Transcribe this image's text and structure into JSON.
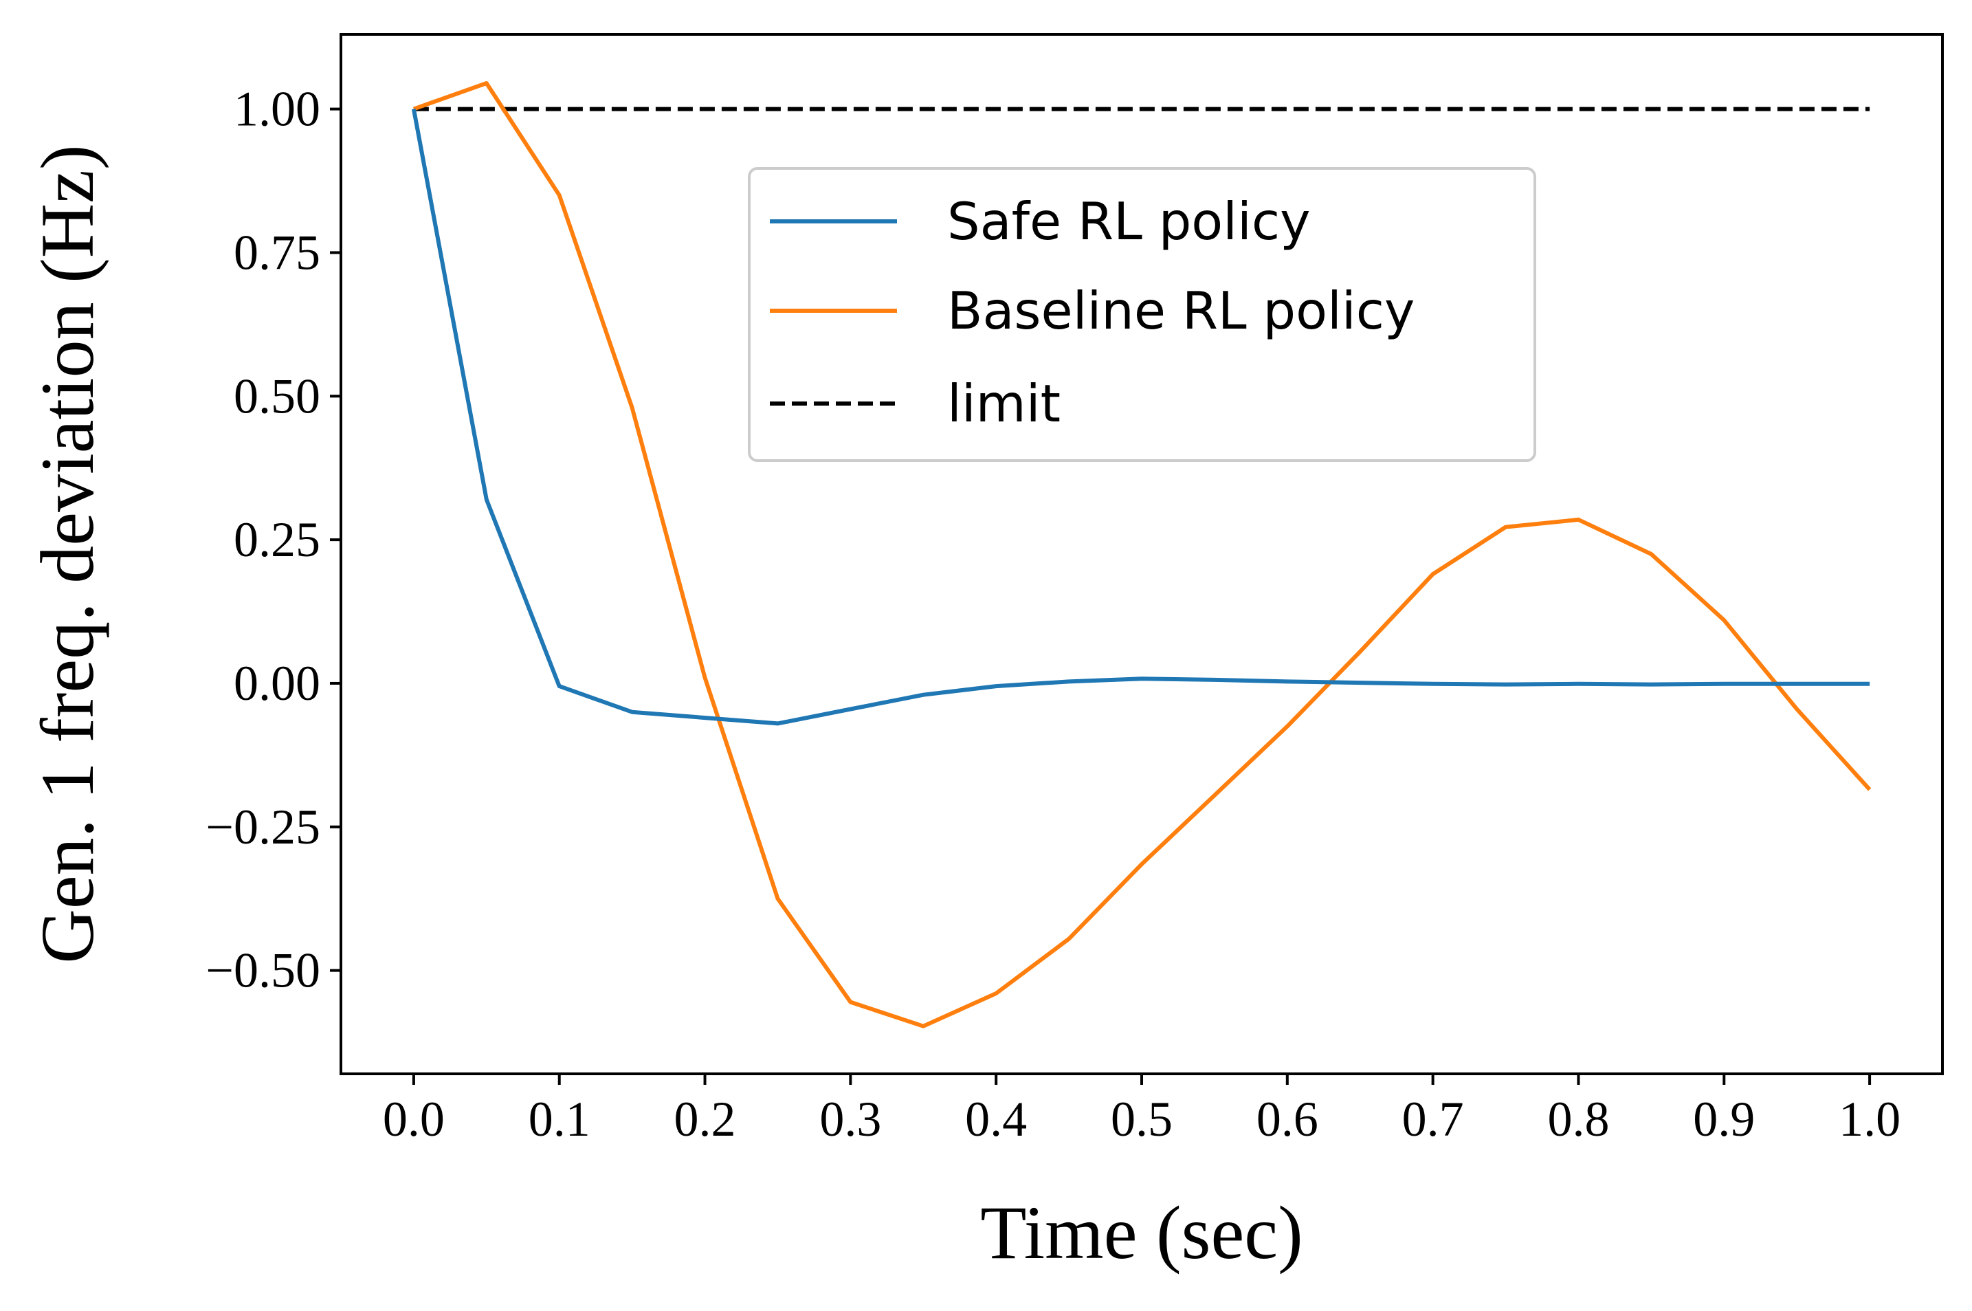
{
  "chart_data": {
    "type": "line",
    "title": "",
    "xlabel": "Time (sec)",
    "ylabel": "Gen. 1 freq. deviation (Hz)",
    "xlim": [
      -0.05,
      1.05
    ],
    "ylim": [
      -0.68,
      1.13
    ],
    "xticks": [
      0.0,
      0.1,
      0.2,
      0.3,
      0.4,
      0.5,
      0.6,
      0.7,
      0.8,
      0.9,
      1.0
    ],
    "xtick_labels": [
      "0.0",
      "0.1",
      "0.2",
      "0.3",
      "0.4",
      "0.5",
      "0.6",
      "0.7",
      "0.8",
      "0.9",
      "1.0"
    ],
    "yticks": [
      1.0,
      0.75,
      0.5,
      0.25,
      0.0,
      -0.25,
      -0.5
    ],
    "ytick_labels": [
      "1.00",
      "0.75",
      "0.50",
      "0.25",
      "0.00",
      "−0.25",
      "−0.50"
    ],
    "grid": false,
    "legend_position": "upper-center",
    "x": [
      0.0,
      0.05,
      0.1,
      0.15,
      0.2,
      0.25,
      0.3,
      0.35,
      0.4,
      0.45,
      0.5,
      0.55,
      0.6,
      0.65,
      0.7,
      0.75,
      0.8,
      0.85,
      0.9,
      0.95,
      1.0
    ],
    "series": [
      {
        "name": "Safe RL policy",
        "color": "#1f77b4",
        "style": "solid",
        "values": [
          1.0,
          0.32,
          -0.005,
          -0.05,
          -0.06,
          -0.07,
          -0.045,
          -0.02,
          -0.005,
          0.003,
          0.008,
          0.006,
          0.003,
          0.001,
          -0.001,
          -0.002,
          -0.001,
          -0.002,
          -0.001,
          -0.001,
          -0.001
        ]
      },
      {
        "name": "Baseline RL policy",
        "color": "#ff7f0e",
        "style": "solid",
        "values": [
          1.0,
          1.045,
          0.85,
          0.48,
          0.01,
          -0.375,
          -0.555,
          -0.597,
          -0.54,
          -0.445,
          -0.315,
          -0.195,
          -0.075,
          0.055,
          0.19,
          0.272,
          0.285,
          0.225,
          0.11,
          -0.045,
          -0.185
        ]
      },
      {
        "name": "limit",
        "color": "#000000",
        "style": "dashed",
        "values": [
          1.0,
          1.0,
          1.0,
          1.0,
          1.0,
          1.0,
          1.0,
          1.0,
          1.0,
          1.0,
          1.0,
          1.0,
          1.0,
          1.0,
          1.0,
          1.0,
          1.0,
          1.0,
          1.0,
          1.0,
          1.0
        ]
      }
    ]
  }
}
